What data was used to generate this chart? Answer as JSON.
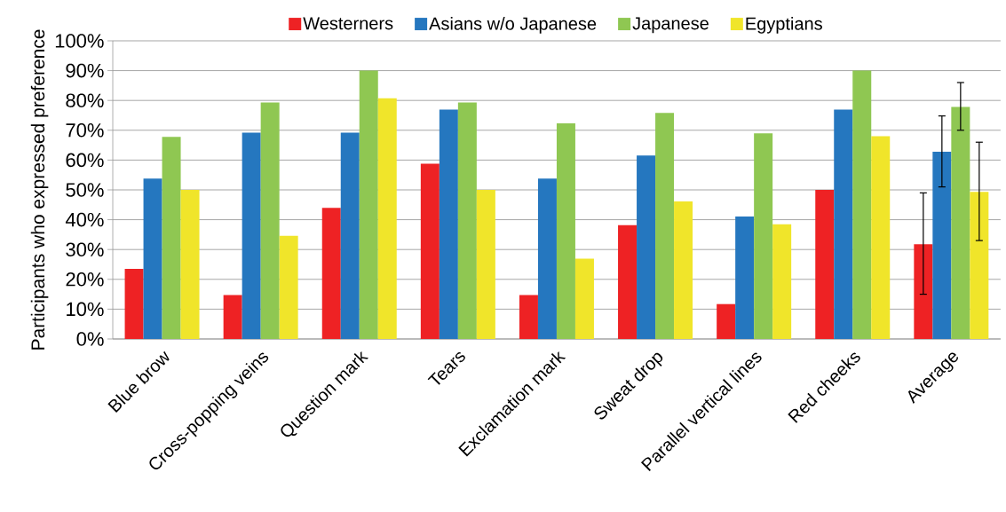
{
  "chart_data": {
    "type": "bar",
    "ylabel": "Participants who expressed preference",
    "categories": [
      "Blue brow",
      "Cross-popping veins",
      "Question mark",
      "Tears",
      "Exclamation mark",
      "Sweat drop",
      "Parallel vertical lines",
      "Red cheeks",
      "Average"
    ],
    "series": [
      {
        "name": "Westerners",
        "color": "#ee2224",
        "values": [
          23.5,
          14.7,
          44,
          58.8,
          14.7,
          38.2,
          11.7,
          50,
          31.8
        ],
        "errors": [
          null,
          null,
          null,
          null,
          null,
          null,
          null,
          null,
          [
            15,
            49
          ]
        ]
      },
      {
        "name": "Asians w/o Japanese",
        "color": "#2577bf",
        "values": [
          53.8,
          69.2,
          69.2,
          76.9,
          53.8,
          61.5,
          41.1,
          76.9,
          62.8
        ],
        "errors": [
          null,
          null,
          null,
          null,
          null,
          null,
          null,
          null,
          [
            51,
            74.8
          ]
        ]
      },
      {
        "name": "Japanese",
        "color": "#8fc752",
        "values": [
          67.8,
          79.3,
          90,
          79.3,
          72.3,
          75.8,
          69,
          90,
          77.8
        ],
        "errors": [
          null,
          null,
          null,
          null,
          null,
          null,
          null,
          null,
          [
            70,
            86
          ]
        ]
      },
      {
        "name": "Egyptians",
        "color": "#f0e52a",
        "values": [
          50,
          34.6,
          80.7,
          50,
          26.9,
          46.1,
          38.5,
          68,
          49.3
        ],
        "errors": [
          null,
          null,
          null,
          null,
          null,
          null,
          null,
          null,
          [
            33,
            66
          ]
        ]
      }
    ],
    "ylim": [
      0,
      100
    ],
    "yticks": [
      {
        "value": 0,
        "label": "0%"
      },
      {
        "value": 10,
        "label": "10%"
      },
      {
        "value": 20,
        "label": "20%"
      },
      {
        "value": 30,
        "label": "30%"
      },
      {
        "value": 40,
        "label": "40%"
      },
      {
        "value": 50,
        "label": "50%"
      },
      {
        "value": 60,
        "label": "60%"
      },
      {
        "value": 70,
        "label": "70%"
      },
      {
        "value": 80,
        "label": "80%"
      },
      {
        "value": 90,
        "label": "90%"
      },
      {
        "value": 100,
        "label": "100%"
      }
    ],
    "grid": "y",
    "legend": "top"
  }
}
